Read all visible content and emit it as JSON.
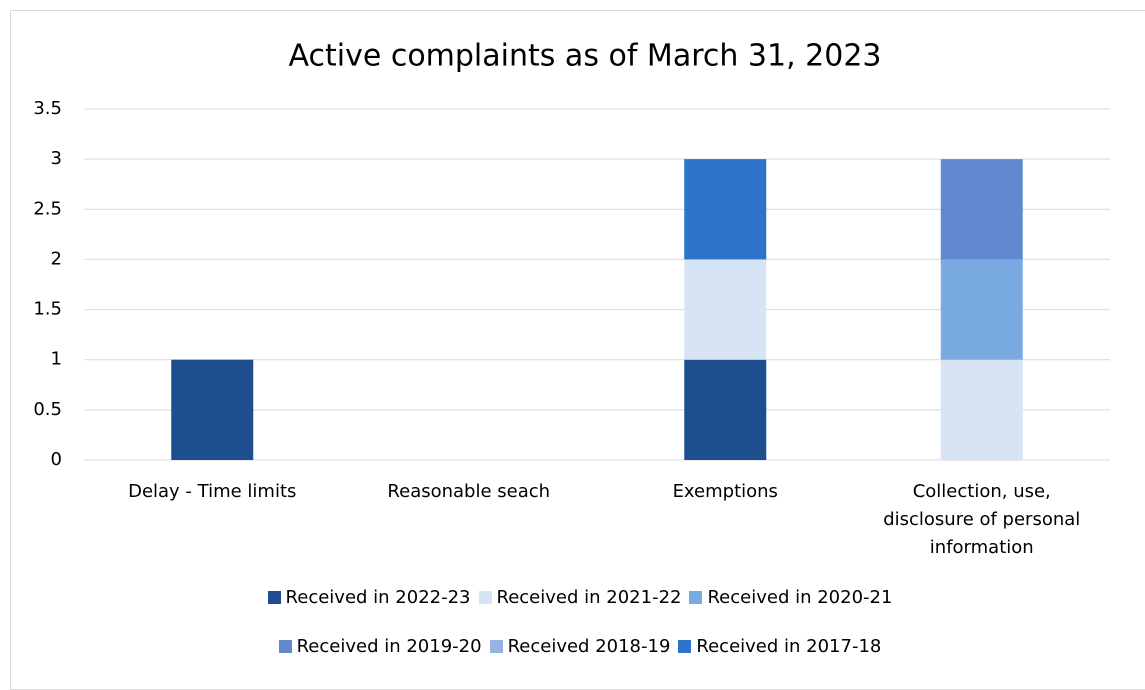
{
  "chart_data": {
    "type": "stacked_bar",
    "title": "Active complaints as of March 31, 2023",
    "categories": [
      "Delay - Time limits",
      "Reasonable seach",
      "Exemptions",
      "Collection, use, disclosure of personal information"
    ],
    "series": [
      {
        "name": "Received in 2022-23",
        "color": "#1f4e8f",
        "values": [
          1,
          0,
          1,
          0
        ]
      },
      {
        "name": "Received in 2021-22",
        "color": "#d6e4f5",
        "values": [
          0,
          0,
          1,
          1
        ]
      },
      {
        "name": "Received in 2020-21",
        "color": "#7aaae2",
        "values": [
          0,
          0,
          0,
          1
        ]
      },
      {
        "name": "Received in 2019-20",
        "color": "#6289cf",
        "values": [
          0,
          0,
          0,
          1
        ]
      },
      {
        "name": "Received 2018-19",
        "color": "#97b3df",
        "values": [
          0,
          0,
          0,
          0
        ]
      },
      {
        "name": "Received in 2017-18",
        "color": "#2c73c9",
        "values": [
          0,
          0,
          1,
          0
        ]
      }
    ],
    "ylim": [
      0,
      3.5
    ],
    "yticks": [
      0,
      0.5,
      1,
      1.5,
      2,
      2.5,
      3,
      3.5
    ],
    "grid": true,
    "legend": "bottom"
  }
}
